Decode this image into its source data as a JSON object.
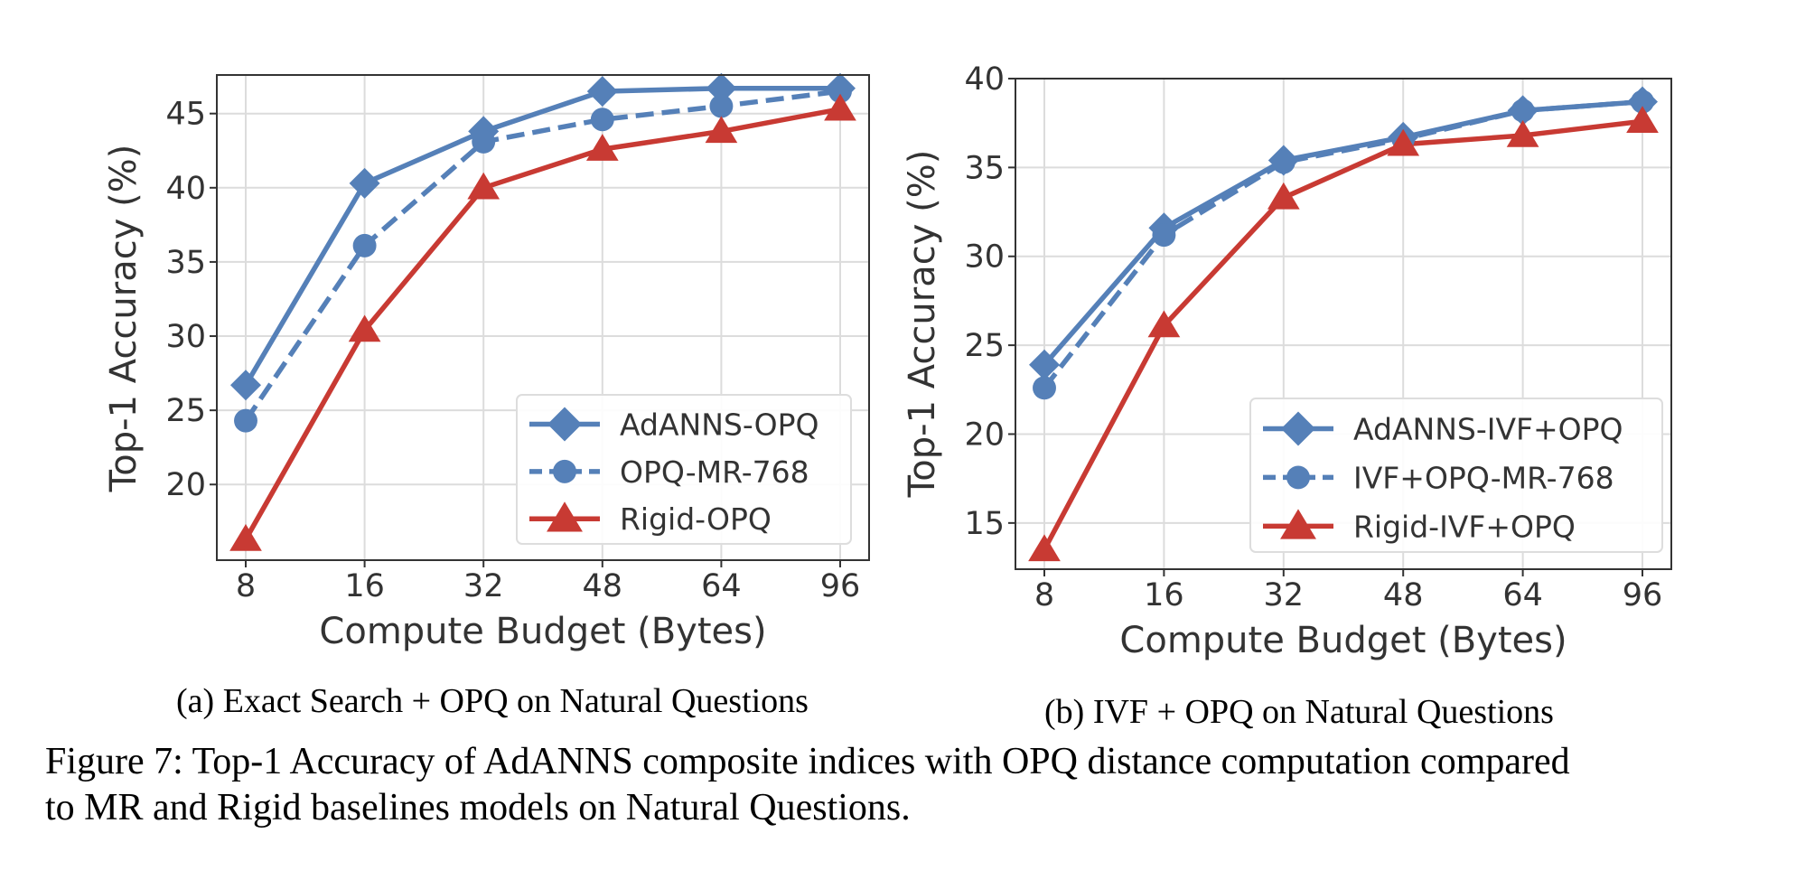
{
  "colors": {
    "blue": "#5580b8",
    "red": "#c83a33",
    "grid": "#dcdcdc",
    "text": "#333333"
  },
  "chart_data": [
    {
      "type": "line",
      "categories": [
        "8",
        "16",
        "32",
        "48",
        "64",
        "96"
      ],
      "xlabel": "Compute Budget (Bytes)",
      "ylabel": "Top-1 Accuracy (%)",
      "ylim": [
        14.9,
        47.6
      ],
      "yticks": [
        20,
        25,
        30,
        35,
        40,
        45
      ],
      "grid": true,
      "legend_position": "lower-right",
      "caption": "(a) Exact Search + OPQ on Natural Questions",
      "series": [
        {
          "name": "AdANNS-OPQ",
          "values": [
            26.7,
            40.3,
            43.8,
            46.5,
            46.7,
            46.7
          ],
          "color": "#5580b8",
          "marker": "diamond",
          "linestyle": "solid"
        },
        {
          "name": "OPQ-MR-768",
          "values": [
            24.3,
            36.1,
            43.1,
            44.6,
            45.5,
            46.5
          ],
          "color": "#5580b8",
          "marker": "circle",
          "linestyle": "dashed"
        },
        {
          "name": "Rigid-OPQ",
          "values": [
            16.3,
            30.4,
            40.0,
            42.6,
            43.8,
            45.3
          ],
          "color": "#c83a33",
          "marker": "triangle",
          "linestyle": "solid"
        }
      ]
    },
    {
      "type": "line",
      "categories": [
        "8",
        "16",
        "32",
        "48",
        "64",
        "96"
      ],
      "xlabel": "Compute Budget (Bytes)",
      "ylabel": "Top-1 Accuracy (%)",
      "ylim": [
        12.4,
        40.0
      ],
      "yticks": [
        15,
        20,
        25,
        30,
        35,
        40
      ],
      "grid": true,
      "legend_position": "lower-right",
      "caption": "(b) IVF + OPQ on Natural Questions",
      "series": [
        {
          "name": "AdANNS-IVF+OPQ",
          "values": [
            23.9,
            31.6,
            35.4,
            36.7,
            38.2,
            38.7
          ],
          "color": "#5580b8",
          "marker": "diamond",
          "linestyle": "solid"
        },
        {
          "name": "IVF+OPQ-MR-768",
          "values": [
            22.6,
            31.2,
            35.3,
            36.6,
            38.2,
            38.7
          ],
          "color": "#5580b8",
          "marker": "circle",
          "linestyle": "dashed"
        },
        {
          "name": "Rigid-IVF+OPQ",
          "values": [
            13.5,
            26.1,
            33.3,
            36.3,
            36.8,
            37.6
          ],
          "color": "#c83a33",
          "marker": "triangle",
          "linestyle": "solid"
        }
      ]
    }
  ],
  "figure_caption": {
    "line1": "Figure 7: Top-1 Accuracy of AdANNS composite indices with OPQ distance computation compared",
    "line2": "to MR and Rigid baselines models on Natural Questions."
  }
}
